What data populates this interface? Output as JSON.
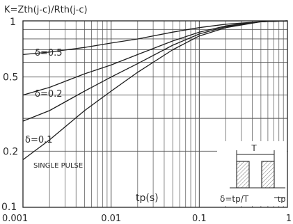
{
  "chart_data": {
    "type": "line",
    "title": "K=Zth(j-c)/Rth(j-c)",
    "xlabel": "tp(s)",
    "ylabel": "",
    "xscale": "log",
    "yscale": "log",
    "xlim": [
      0.001,
      1
    ],
    "ylim": [
      0.1,
      1
    ],
    "grid": true,
    "x_tick_labels": [
      "0.001",
      "0.01",
      "0.1",
      "1"
    ],
    "y_tick_labels": [
      "0.1",
      "0.2",
      "0.5",
      "1"
    ],
    "x_ticks": [
      0.001,
      0.01,
      0.1,
      1
    ],
    "y_ticks": [
      0.1,
      0.2,
      0.5,
      1
    ],
    "x": [
      0.001,
      0.002,
      0.005,
      0.01,
      0.02,
      0.05,
      0.1,
      0.2,
      0.5,
      1
    ],
    "series": [
      {
        "name": "δ=0.5",
        "values": [
          0.66,
          0.68,
          0.72,
          0.76,
          0.8,
          0.87,
          0.92,
          0.96,
          0.99,
          1.0
        ]
      },
      {
        "name": "δ=0.2",
        "values": [
          0.4,
          0.44,
          0.52,
          0.58,
          0.66,
          0.78,
          0.87,
          0.94,
          0.99,
          1.0
        ]
      },
      {
        "name": "δ=0.1",
        "values": [
          0.29,
          0.33,
          0.42,
          0.5,
          0.59,
          0.74,
          0.85,
          0.93,
          0.99,
          1.0
        ]
      },
      {
        "name": "SINGLE PULSE",
        "values": [
          0.18,
          0.23,
          0.33,
          0.42,
          0.53,
          0.7,
          0.83,
          0.92,
          0.99,
          1.0
        ]
      }
    ],
    "inset": {
      "period_label": "T",
      "pulse_label": "tp",
      "formula_label": "δ=tp/T"
    }
  }
}
